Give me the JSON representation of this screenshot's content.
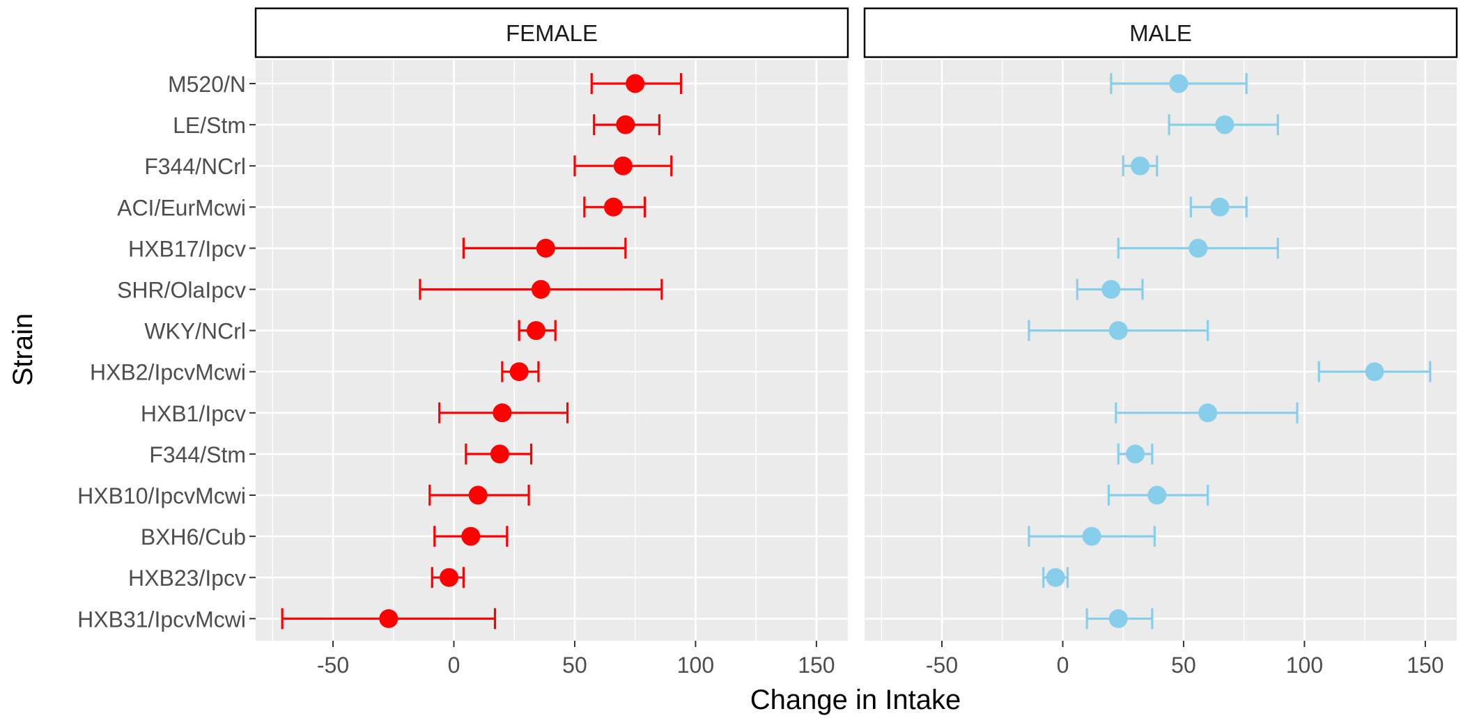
{
  "chart_data": {
    "type": "scatter",
    "subtype": "point-range (dot with error bars), faceted",
    "xlabel": "Change in Intake",
    "ylabel": "Strain",
    "xlim": [
      -82,
      163
    ],
    "x_ticks": [
      -50,
      0,
      50,
      100,
      150
    ],
    "x_tick_labels": [
      "-50",
      "0",
      "50",
      "100",
      "150"
    ],
    "grid": true,
    "strains": [
      "M520/N",
      "LE/Stm",
      "F344/NCrl",
      "ACI/EurMcwi",
      "HXB17/Ipcv",
      "SHR/OlaIpcv",
      "WKY/NCrl",
      "HXB2/IpcvMcwi",
      "HXB1/Ipcv",
      "F344/Stm",
      "HXB10/IpcvMcwi",
      "BXH6/Cub",
      "HXB23/Ipcv",
      "HXB31/IpcvMcwi"
    ],
    "panels": [
      {
        "name": "FEMALE",
        "color": "#ff0000",
        "points": [
          {
            "strain": "M520/N",
            "mean": 75,
            "low": 57,
            "high": 94
          },
          {
            "strain": "LE/Stm",
            "mean": 71,
            "low": 58,
            "high": 85
          },
          {
            "strain": "F344/NCrl",
            "mean": 70,
            "low": 50,
            "high": 90
          },
          {
            "strain": "ACI/EurMcwi",
            "mean": 66,
            "low": 54,
            "high": 79
          },
          {
            "strain": "HXB17/Ipcv",
            "mean": 38,
            "low": 4,
            "high": 71
          },
          {
            "strain": "SHR/OlaIpcv",
            "mean": 36,
            "low": -14,
            "high": 86
          },
          {
            "strain": "WKY/NCrl",
            "mean": 34,
            "low": 27,
            "high": 42
          },
          {
            "strain": "HXB2/IpcvMcwi",
            "mean": 27,
            "low": 20,
            "high": 35
          },
          {
            "strain": "HXB1/Ipcv",
            "mean": 20,
            "low": -6,
            "high": 47
          },
          {
            "strain": "F344/Stm",
            "mean": 19,
            "low": 5,
            "high": 32
          },
          {
            "strain": "HXB10/IpcvMcwi",
            "mean": 10,
            "low": -10,
            "high": 31
          },
          {
            "strain": "BXH6/Cub",
            "mean": 7,
            "low": -8,
            "high": 22
          },
          {
            "strain": "HXB23/Ipcv",
            "mean": -2,
            "low": -9,
            "high": 4
          },
          {
            "strain": "HXB31/IpcvMcwi",
            "mean": -27,
            "low": -71,
            "high": 17
          }
        ]
      },
      {
        "name": "MALE",
        "color": "#87ceeb",
        "points": [
          {
            "strain": "M520/N",
            "mean": 48,
            "low": 20,
            "high": 76
          },
          {
            "strain": "LE/Stm",
            "mean": 67,
            "low": 44,
            "high": 89
          },
          {
            "strain": "F344/NCrl",
            "mean": 32,
            "low": 25,
            "high": 39
          },
          {
            "strain": "ACI/EurMcwi",
            "mean": 65,
            "low": 53,
            "high": 76
          },
          {
            "strain": "HXB17/Ipcv",
            "mean": 56,
            "low": 23,
            "high": 89
          },
          {
            "strain": "SHR/OlaIpcv",
            "mean": 20,
            "low": 6,
            "high": 33
          },
          {
            "strain": "WKY/NCrl",
            "mean": 23,
            "low": -14,
            "high": 60
          },
          {
            "strain": "HXB2/IpcvMcwi",
            "mean": 129,
            "low": 106,
            "high": 152
          },
          {
            "strain": "HXB1/Ipcv",
            "mean": 60,
            "low": 22,
            "high": 97
          },
          {
            "strain": "F344/Stm",
            "mean": 30,
            "low": 23,
            "high": 37
          },
          {
            "strain": "HXB10/IpcvMcwi",
            "mean": 39,
            "low": 19,
            "high": 60
          },
          {
            "strain": "BXH6/Cub",
            "mean": 12,
            "low": -14,
            "high": 38
          },
          {
            "strain": "HXB23/Ipcv",
            "mean": -3,
            "low": -8,
            "high": 2
          },
          {
            "strain": "HXB31/IpcvMcwi",
            "mean": 23,
            "low": 10,
            "high": 37
          }
        ]
      }
    ]
  }
}
